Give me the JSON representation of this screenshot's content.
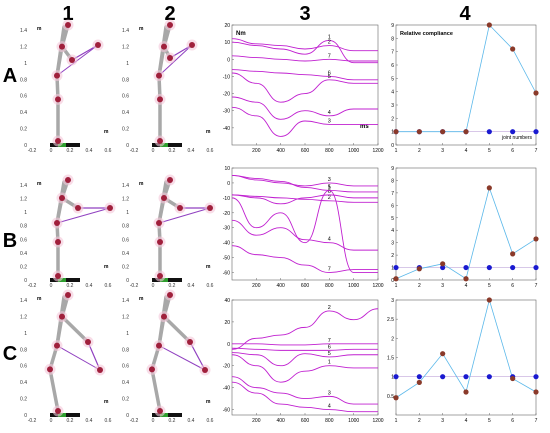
{
  "columns": [
    "1",
    "2",
    "3",
    "4"
  ],
  "rows": [
    "A",
    "B",
    "C"
  ],
  "skeleton_axes": {
    "y_ticks": [
      "1.4",
      "1.2",
      "1",
      "0.8",
      "0.6",
      "0.4",
      "0.2",
      "0"
    ],
    "x_ticks": [
      "-0.2",
      "0",
      "0.2",
      "0.4",
      "0.6"
    ],
    "y_unit": "m",
    "x_unit": "m"
  },
  "chart_data": [
    {
      "type": "line",
      "panel": "A3",
      "ylabel": "Nm",
      "xlabel": "ms",
      "xlim": [
        0,
        1200
      ],
      "ylim": [
        -50,
        20
      ],
      "yticks": [
        20,
        10,
        0,
        -10,
        -20,
        -30,
        -40
      ],
      "xticks": [
        200,
        400,
        600,
        800,
        1000,
        1200
      ],
      "series": [
        {
          "name": "1",
          "x": [
            0,
            200,
            400,
            600,
            800,
            1000,
            1200
          ],
          "y": [
            10,
            8,
            6,
            3,
            11,
            -2,
            -2
          ]
        },
        {
          "name": "2",
          "x": [
            0,
            200,
            400,
            600,
            800,
            1000,
            1200
          ],
          "y": [
            12,
            9,
            8,
            6,
            8,
            5,
            5
          ]
        },
        {
          "name": "7",
          "x": [
            0,
            200,
            400,
            600,
            800,
            1000,
            1200
          ],
          "y": [
            2,
            1,
            0,
            -1,
            0,
            -1,
            -1
          ]
        },
        {
          "name": "6",
          "x": [
            0,
            200,
            400,
            600,
            800,
            1000,
            1200
          ],
          "y": [
            -6,
            -7,
            -8,
            -9,
            -10,
            -12,
            -12
          ]
        },
        {
          "name": "5",
          "x": [
            0,
            200,
            400,
            600,
            800,
            1000,
            1200
          ],
          "y": [
            -8,
            -14,
            -25,
            -20,
            -12,
            -14,
            -14
          ]
        },
        {
          "name": "4",
          "x": [
            0,
            200,
            400,
            600,
            800,
            1000,
            1200
          ],
          "y": [
            -22,
            -25,
            -35,
            -30,
            -33,
            -29,
            -29
          ]
        },
        {
          "name": "3",
          "x": [
            0,
            200,
            400,
            600,
            800,
            1000,
            1200
          ],
          "y": [
            -28,
            -33,
            -45,
            -36,
            -38,
            -38,
            -38
          ]
        }
      ]
    },
    {
      "type": "line",
      "panel": "B3",
      "xlim": [
        0,
        1200
      ],
      "ylim": [
        -65,
        10
      ],
      "yticks": [
        10,
        0,
        -10,
        -20,
        -30,
        -40,
        -50,
        -60
      ],
      "xticks": [
        200,
        400,
        600,
        800,
        1000,
        1200
      ],
      "series": [
        {
          "name": "1",
          "x": [
            0,
            200,
            400,
            600,
            800,
            1000,
            1200
          ],
          "y": [
            5,
            3,
            1,
            -3,
            -5,
            -6,
            -6
          ]
        },
        {
          "name": "3",
          "x": [
            0,
            200,
            400,
            600,
            800,
            1000,
            1200
          ],
          "y": [
            5,
            2,
            0,
            -2,
            0,
            -2,
            -2
          ]
        },
        {
          "name": "2",
          "x": [
            0,
            200,
            400,
            600,
            800,
            1000,
            1200
          ],
          "y": [
            -8,
            -9,
            -10,
            -11,
            -12,
            -13,
            -13
          ]
        },
        {
          "name": "6",
          "x": [
            0,
            200,
            400,
            600,
            800,
            1000,
            1200
          ],
          "y": [
            -8,
            -10,
            -14,
            -10,
            -8,
            -10,
            -10
          ]
        },
        {
          "name": "5",
          "x": [
            0,
            200,
            400,
            600,
            800,
            1000,
            1200
          ],
          "y": [
            -10,
            -30,
            -20,
            -40,
            -5,
            -60,
            -60
          ]
        },
        {
          "name": "4",
          "x": [
            0,
            200,
            400,
            600,
            800,
            1000,
            1200
          ],
          "y": [
            -25,
            -35,
            -30,
            -38,
            -40,
            -45,
            -45
          ]
        },
        {
          "name": "7",
          "x": [
            0,
            200,
            400,
            600,
            800,
            1000,
            1200
          ],
          "y": [
            -42,
            -48,
            -50,
            -55,
            -60,
            -58,
            -58
          ]
        }
      ]
    },
    {
      "type": "line",
      "panel": "C3",
      "xlim": [
        0,
        1200
      ],
      "ylim": [
        -65,
        40
      ],
      "yticks": [
        40,
        20,
        0,
        -20,
        -40,
        -60
      ],
      "xticks": [
        200,
        400,
        600,
        800,
        1000,
        1200
      ],
      "series": [
        {
          "name": "2",
          "x": [
            0,
            200,
            400,
            600,
            800,
            1000,
            1200
          ],
          "y": [
            -5,
            5,
            8,
            15,
            30,
            22,
            32
          ]
        },
        {
          "name": "7",
          "x": [
            0,
            200,
            400,
            600,
            800,
            1000,
            1200
          ],
          "y": [
            0,
            0,
            -1,
            -1,
            0,
            0,
            0
          ]
        },
        {
          "name": "6",
          "x": [
            0,
            200,
            400,
            600,
            800,
            1000,
            1200
          ],
          "y": [
            -4,
            -5,
            -6,
            -6,
            -6,
            -5,
            -5
          ]
        },
        {
          "name": "5",
          "x": [
            0,
            200,
            400,
            600,
            800,
            1000,
            1200
          ],
          "y": [
            -8,
            -10,
            -20,
            -9,
            -12,
            -10,
            -10
          ]
        },
        {
          "name": "1",
          "x": [
            0,
            200,
            400,
            600,
            800,
            1000,
            1200
          ],
          "y": [
            -10,
            -20,
            -35,
            -25,
            -20,
            -22,
            -22
          ]
        },
        {
          "name": "3",
          "x": [
            0,
            200,
            400,
            600,
            800,
            1000,
            1200
          ],
          "y": [
            -30,
            -40,
            -45,
            -50,
            -48,
            -55,
            -55
          ]
        },
        {
          "name": "4",
          "x": [
            0,
            200,
            400,
            600,
            800,
            1000,
            1200
          ],
          "y": [
            -35,
            -45,
            -55,
            -58,
            -60,
            -62,
            -62
          ]
        }
      ]
    },
    {
      "type": "scatter",
      "panel": "A4",
      "title": "Relative compliance",
      "xlabel": "joint numbers",
      "xlim": [
        1,
        7
      ],
      "ylim": [
        0,
        9
      ],
      "yticks": [
        9,
        8,
        7,
        6,
        5,
        4,
        3,
        2,
        1,
        0
      ],
      "xticks": [
        1,
        2,
        3,
        4,
        5,
        6,
        7
      ],
      "x": [
        1,
        2,
        3,
        4,
        5,
        6,
        7
      ],
      "y": [
        1,
        1,
        1,
        1,
        9,
        7.2,
        3.9
      ],
      "baseline": 1
    },
    {
      "type": "scatter",
      "panel": "B4",
      "xlim": [
        1,
        7
      ],
      "ylim": [
        0,
        9
      ],
      "yticks": [
        9,
        8,
        7,
        6,
        5,
        4,
        3,
        2,
        1,
        0
      ],
      "xticks": [
        1,
        2,
        3,
        4,
        5,
        6,
        7
      ],
      "x": [
        1,
        2,
        3,
        4,
        5,
        6,
        7
      ],
      "y": [
        0.1,
        0.9,
        1.3,
        0.1,
        7.4,
        2.1,
        3.3
      ],
      "baseline": 1
    },
    {
      "type": "scatter",
      "panel": "C4",
      "xlim": [
        1,
        7
      ],
      "ylim": [
        0,
        3
      ],
      "yticks": [
        3,
        2.5,
        2,
        1.5,
        1,
        0.5
      ],
      "xticks": [
        1,
        2,
        3,
        4,
        5,
        6,
        7
      ],
      "x": [
        1,
        2,
        3,
        4,
        5,
        6,
        7
      ],
      "y": [
        0.45,
        0.85,
        1.6,
        0.6,
        3.0,
        0.95,
        0.6
      ],
      "baseline": 1
    }
  ]
}
